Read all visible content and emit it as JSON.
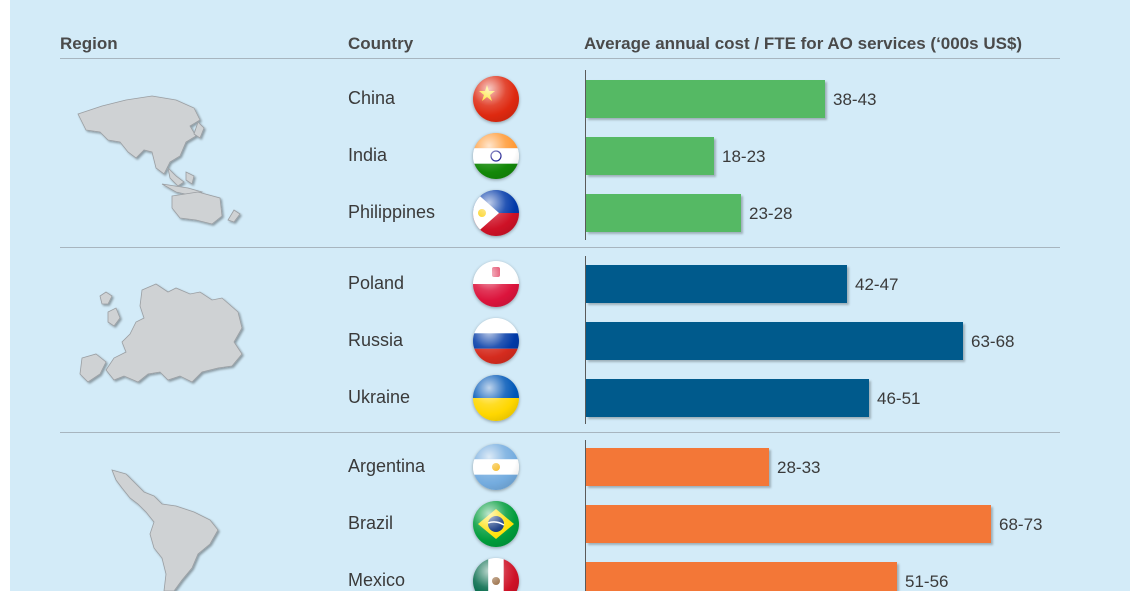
{
  "header": {
    "region": "Region",
    "country": "Country",
    "cost": "Average annual cost / FTE for AO services (‘000s US$)"
  },
  "chart_data": {
    "type": "bar",
    "orientation": "horizontal",
    "title": "Average annual cost / FTE for AO services (‘000s US$)",
    "groups": [
      {
        "color": "#55b964",
        "items": [
          {
            "country": "China",
            "low": 38,
            "high": 43,
            "label": "38-43",
            "flag": "china-flag-icon"
          },
          {
            "country": "India",
            "low": 18,
            "high": 23,
            "label": "18-23",
            "flag": "india-flag-icon"
          },
          {
            "country": "Philippines",
            "low": 23,
            "high": 28,
            "label": "23-28",
            "flag": "philippines-flag-icon"
          }
        ]
      },
      {
        "color": "#005a8c",
        "items": [
          {
            "country": "Poland",
            "low": 42,
            "high": 47,
            "label": "42-47",
            "flag": "poland-flag-icon"
          },
          {
            "country": "Russia",
            "low": 63,
            "high": 68,
            "label": "63-68",
            "flag": "russia-flag-icon"
          },
          {
            "country": "Ukraine",
            "low": 46,
            "high": 51,
            "label": "46-51",
            "flag": "ukraine-flag-icon"
          }
        ]
      },
      {
        "color": "#f37737",
        "items": [
          {
            "country": "Argentina",
            "low": 28,
            "high": 33,
            "label": "28-33",
            "flag": "argentina-flag-icon"
          },
          {
            "country": "Brazil",
            "low": 68,
            "high": 73,
            "label": "68-73",
            "flag": "brazil-flag-icon"
          },
          {
            "country": "Mexico",
            "low": 51,
            "high": 56,
            "label": "51-56",
            "flag": "mexico-flag-icon"
          }
        ]
      }
    ],
    "grid": false,
    "legend": "none"
  }
}
